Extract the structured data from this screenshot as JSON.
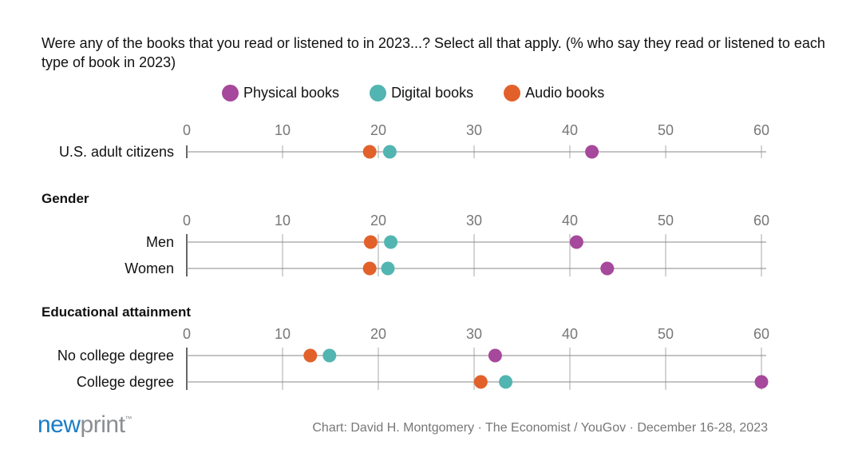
{
  "chart_data": {
    "type": "dot",
    "title": "Were any of the books that you read or listened to in 2023...? Select all that apply. (% who say they read or listened to each type of book in 2023)",
    "xlim": [
      0,
      60
    ],
    "ticks": [
      0,
      10,
      20,
      30,
      40,
      50,
      60
    ],
    "grid": true,
    "legend_placement": "top",
    "series": [
      {
        "name": "Physical books",
        "color": "#a6489b"
      },
      {
        "name": "Digital books",
        "color": "#52b5b2"
      },
      {
        "name": "Audio books",
        "color": "#e2612a"
      }
    ],
    "groups": [
      {
        "heading": "",
        "rows": [
          {
            "label": "U.S. adult citizens",
            "values": [
              42.3,
              21.2,
              19.1
            ]
          }
        ]
      },
      {
        "heading": "Gender",
        "rows": [
          {
            "label": "Men",
            "values": [
              40.7,
              21.3,
              19.2
            ]
          },
          {
            "label": "Women",
            "values": [
              43.9,
              21.0,
              19.1
            ]
          }
        ]
      },
      {
        "heading": "Educational attainment",
        "rows": [
          {
            "label": "No college degree",
            "values": [
              32.2,
              14.9,
              12.9
            ]
          },
          {
            "label": "College degree",
            "values": [
              60.0,
              33.3,
              30.7
            ]
          }
        ]
      }
    ]
  },
  "footer": {
    "source": "Chart: David H. Montgomery · The Economist / YouGov · December 16-28, 2023",
    "logo_part1": "new",
    "logo_part2": "print",
    "logo_tm": "™"
  }
}
